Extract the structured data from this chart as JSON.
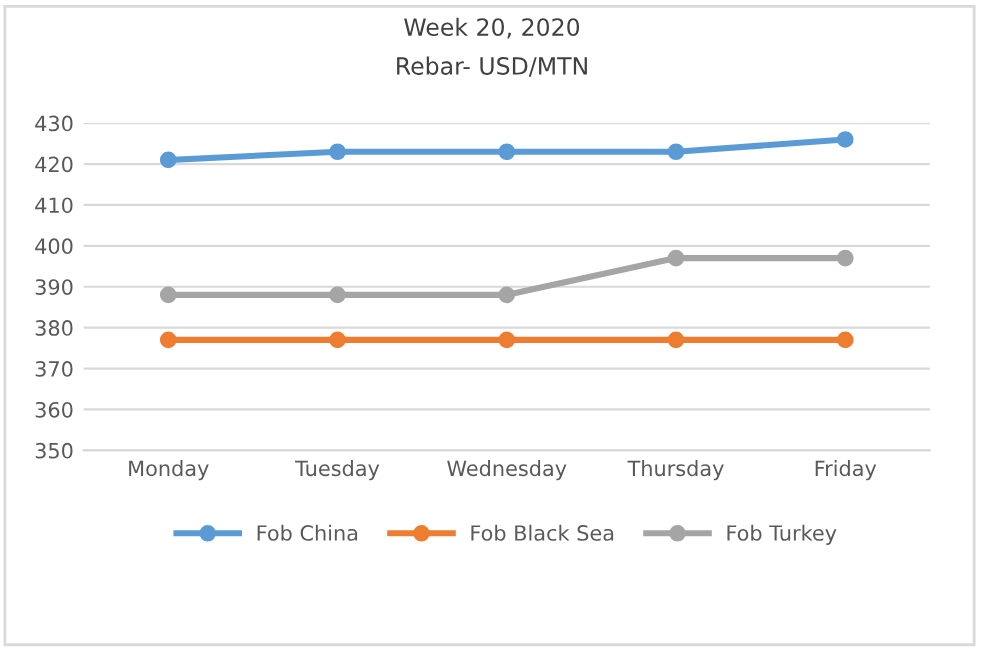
{
  "chart_data": {
    "type": "line",
    "title": "Week 20, 2020",
    "subtitle": "Rebar- USD/MTN",
    "categories": [
      "Monday",
      "Tuesday",
      "Wednesday",
      "Thursday",
      "Friday"
    ],
    "series": [
      {
        "name": "Fob China",
        "color": "#5b9bd5",
        "values": [
          421,
          423,
          423,
          423,
          426
        ]
      },
      {
        "name": "Fob Black Sea",
        "color": "#ed7d31",
        "values": [
          377,
          377,
          377,
          377,
          377
        ]
      },
      {
        "name": "Fob Turkey",
        "color": "#a5a5a5",
        "values": [
          388,
          388,
          388,
          397,
          397
        ]
      }
    ],
    "ylim": [
      350,
      430
    ],
    "yticks": [
      350,
      360,
      370,
      380,
      390,
      400,
      410,
      420,
      430
    ],
    "grid": "y",
    "legend": "bottom",
    "marker": "circle",
    "line_style": "solid"
  }
}
